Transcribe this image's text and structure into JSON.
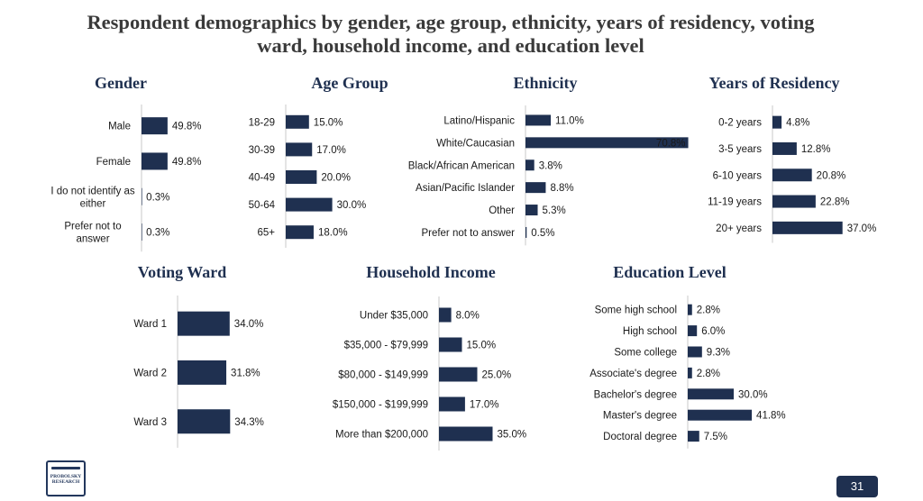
{
  "title": {
    "line1": "Respondent demographics by gender, age group, ethnicity, years of residency, voting",
    "line2": "ward, household income, and education level"
  },
  "colors": {
    "bar": "#1f3050",
    "title": "#1f3050"
  },
  "logo": {
    "text": "PROBOLSKY RESEARCH"
  },
  "page_number": "31",
  "chart_data": [
    {
      "type": "bar",
      "orientation": "horizontal",
      "title": "Gender",
      "categories": [
        [
          "Male"
        ],
        [
          "Female"
        ],
        [
          "I do not identify as",
          "either"
        ],
        [
          "Prefer not to",
          "answer"
        ]
      ],
      "values": [
        49.8,
        49.8,
        0.3,
        0.3
      ],
      "unit": "%"
    },
    {
      "type": "bar",
      "orientation": "horizontal",
      "title": "Age Group",
      "categories": [
        [
          "18-29"
        ],
        [
          "30-39"
        ],
        [
          "40-49"
        ],
        [
          "50-64"
        ],
        [
          "65+"
        ]
      ],
      "values": [
        15.0,
        17.0,
        20.0,
        30.0,
        18.0
      ],
      "unit": "%"
    },
    {
      "type": "bar",
      "orientation": "horizontal",
      "title": "Ethnicity",
      "categories": [
        [
          "Latino/Hispanic"
        ],
        [
          "White/Caucasian"
        ],
        [
          "Black/African American"
        ],
        [
          "Asian/Pacific Islander"
        ],
        [
          "Other"
        ],
        [
          "Prefer not to answer"
        ]
      ],
      "values": [
        11.0,
        70.8,
        3.8,
        8.8,
        5.3,
        0.5
      ],
      "unit": "%"
    },
    {
      "type": "bar",
      "orientation": "horizontal",
      "title": "Years of Residency",
      "categories": [
        [
          "0-2 years"
        ],
        [
          "3-5 years"
        ],
        [
          "6-10 years"
        ],
        [
          "11-19 years"
        ],
        [
          "20+ years"
        ]
      ],
      "values": [
        4.8,
        12.8,
        20.8,
        22.8,
        37.0
      ],
      "unit": "%"
    },
    {
      "type": "bar",
      "orientation": "horizontal",
      "title": "Voting Ward",
      "categories": [
        [
          "Ward 1"
        ],
        [
          "Ward 2"
        ],
        [
          "Ward 3"
        ]
      ],
      "values": [
        34.0,
        31.8,
        34.3
      ],
      "unit": "%"
    },
    {
      "type": "bar",
      "orientation": "horizontal",
      "title": "Household Income",
      "categories": [
        [
          "Under $35,000"
        ],
        [
          "$35,000 - $79,999"
        ],
        [
          "$80,000 - $149,999"
        ],
        [
          "$150,000 - $199,999"
        ],
        [
          "More than $200,000"
        ]
      ],
      "values": [
        8.0,
        15.0,
        25.0,
        17.0,
        35.0
      ],
      "unit": "%"
    },
    {
      "type": "bar",
      "orientation": "horizontal",
      "title": "Education Level",
      "categories": [
        [
          "Some high school"
        ],
        [
          "High school"
        ],
        [
          "Some college"
        ],
        [
          "Associate's degree"
        ],
        [
          "Bachelor's degree"
        ],
        [
          "Master's degree"
        ],
        [
          "Doctoral degree"
        ]
      ],
      "values": [
        2.8,
        6.0,
        9.3,
        2.8,
        30.0,
        41.8,
        7.5
      ],
      "unit": "%"
    }
  ]
}
